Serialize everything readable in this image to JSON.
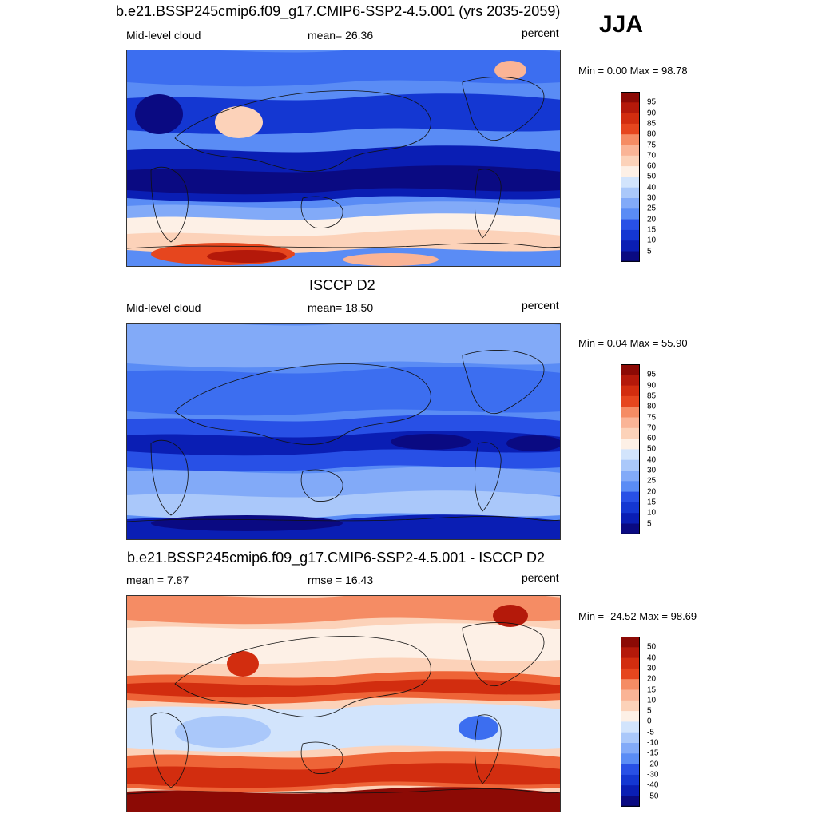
{
  "header": {
    "title": "b.e21.BSSP245cmip6.f09_g17.CMIP6-SSP2-4.5.001 (yrs 2035-2059)",
    "season": "JJA"
  },
  "colors": {
    "abs_palette": [
      "#0a0a82",
      "#0a1eb4",
      "#1437d2",
      "#2850e6",
      "#3c6ef0",
      "#5a8cf5",
      "#82aaf8",
      "#aac8fa",
      "#d2e4fc",
      "#fdf0e6",
      "#fcd2b9",
      "#fab496",
      "#f58c64",
      "#ee6437",
      "#e6461e",
      "#d22d0f",
      "#b4190a",
      "#8c0a05"
    ],
    "diff_palette": [
      "#0a0a82",
      "#0a1eb4",
      "#1437d2",
      "#2850e6",
      "#3c6ef0",
      "#5a8cf5",
      "#82aaf8",
      "#aac8fa",
      "#d2e4fc",
      "#fdf0e6",
      "#fcd2b9",
      "#fab496",
      "#f58c64",
      "#ee6437",
      "#e6461e",
      "#d22d0f",
      "#b4190a",
      "#8c0a05"
    ]
  },
  "panels": [
    {
      "id": "model",
      "title": "",
      "left_label": "Mid-level cloud",
      "center_label": "mean=  26.36",
      "right_label": "percent",
      "minmax": "Min =   0.00 Max =  98.78",
      "colorbar_levels": [
        "95",
        "90",
        "85",
        "80",
        "75",
        "70",
        "60",
        "50",
        "40",
        "30",
        "25",
        "20",
        "15",
        "10",
        "5"
      ]
    },
    {
      "id": "obs",
      "title": "ISCCP D2",
      "left_label": "Mid-level cloud",
      "center_label": "mean=  18.50",
      "right_label": "percent",
      "minmax": "Min =   0.04 Max =  55.90",
      "colorbar_levels": [
        "95",
        "90",
        "85",
        "80",
        "75",
        "70",
        "60",
        "50",
        "40",
        "30",
        "25",
        "20",
        "15",
        "10",
        "5"
      ]
    },
    {
      "id": "diff",
      "title": "b.e21.BSSP245cmip6.f09_g17.CMIP6-SSP2-4.5.001 - ISCCP D2",
      "left_label": "mean =   7.87",
      "center_label": "rmse =  16.43",
      "right_label": "percent",
      "minmax": "Min = -24.52 Max =  98.69",
      "colorbar_levels": [
        "50",
        "40",
        "30",
        "20",
        "15",
        "10",
        "5",
        "0",
        "-5",
        "-10",
        "-15",
        "-20",
        "-30",
        "-40",
        "-50"
      ]
    }
  ],
  "chart_data": [
    {
      "type": "heatmap",
      "title": "b.e21.BSSP245cmip6.f09_g17.CMIP6-SSP2-4.5.001 (yrs 2035-2059)",
      "variable": "Mid-level cloud",
      "units": "percent",
      "season": "JJA",
      "mean": 26.36,
      "min": 0.0,
      "max": 98.78,
      "contour_levels": [
        5,
        10,
        15,
        20,
        25,
        30,
        40,
        50,
        60,
        70,
        75,
        80,
        85,
        90,
        95
      ]
    },
    {
      "type": "heatmap",
      "title": "ISCCP D2",
      "variable": "Mid-level cloud",
      "units": "percent",
      "mean": 18.5,
      "min": 0.04,
      "max": 55.9,
      "contour_levels": [
        5,
        10,
        15,
        20,
        25,
        30,
        40,
        50,
        60,
        70,
        75,
        80,
        85,
        90,
        95
      ]
    },
    {
      "type": "heatmap",
      "title": "b.e21.BSSP245cmip6.f09_g17.CMIP6-SSP2-4.5.001 - ISCCP D2",
      "units": "percent",
      "mean": 7.87,
      "rmse": 16.43,
      "min": -24.52,
      "max": 98.69,
      "contour_levels": [
        -50,
        -40,
        -30,
        -20,
        -15,
        -10,
        -5,
        0,
        5,
        10,
        15,
        20,
        30,
        40,
        50
      ]
    }
  ]
}
